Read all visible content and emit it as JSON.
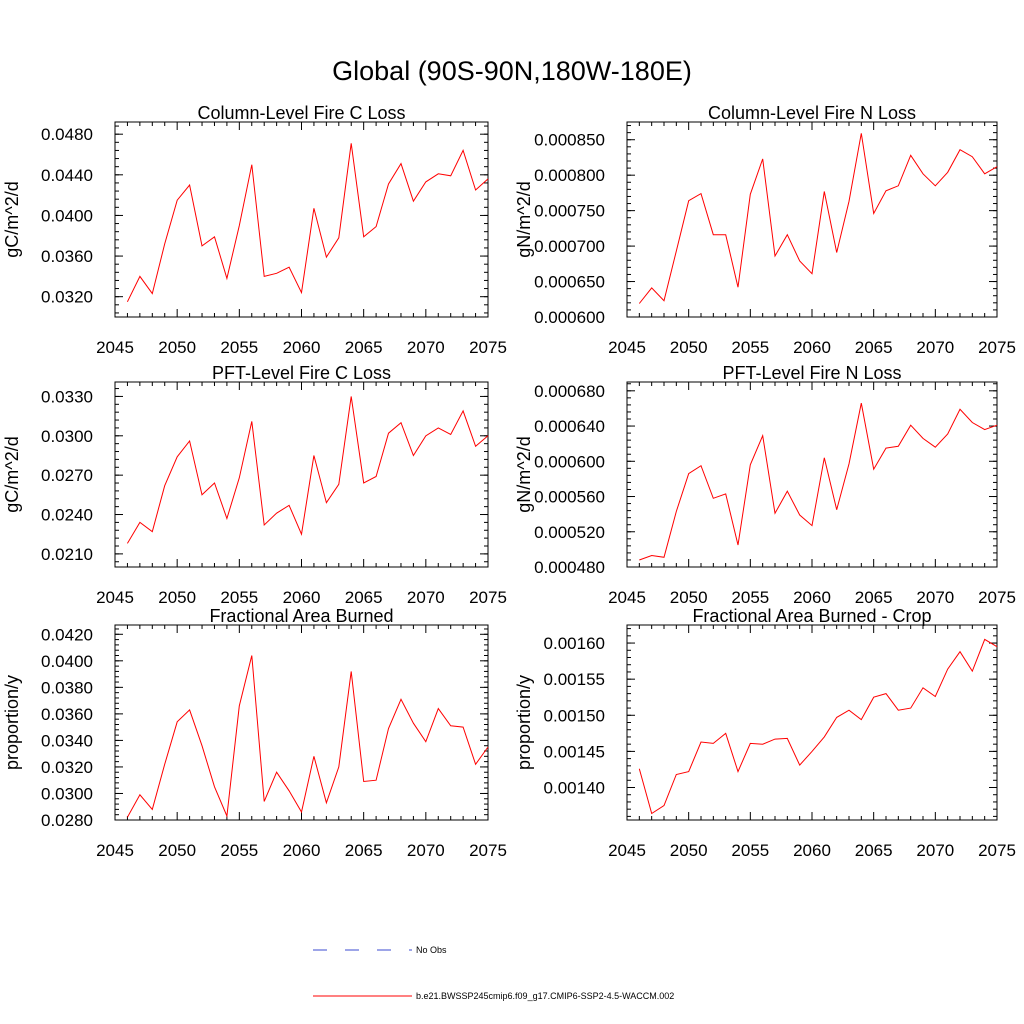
{
  "title": "Global (90S-90N,180W-180E)",
  "legend": [
    {
      "label": "No Obs",
      "color": "#3b4bd1",
      "style": "dashed"
    },
    {
      "label": "b.e21.BWSSP245cmip6.f09_g17.CMIP6-SSP2-4.5-WACCM.002",
      "color": "#ff0000",
      "style": "solid"
    }
  ],
  "chart_data": [
    {
      "type": "line",
      "title": "Column-Level Fire C Loss",
      "ylabel": "gC/m^2/d",
      "xlim": [
        2045,
        2075
      ],
      "ylim": [
        0.03,
        0.0492
      ],
      "xticks": [
        2045,
        2050,
        2055,
        2060,
        2065,
        2070,
        2075
      ],
      "yticks": [
        "0.0320",
        "0.0360",
        "0.0400",
        "0.0440",
        "0.0480"
      ],
      "ytick_values": [
        0.032,
        0.036,
        0.04,
        0.044,
        0.048
      ],
      "ymin_step": 0.0008,
      "series": [
        {
          "color": "#ff0000",
          "x": [
            2046,
            2047,
            2048,
            2049,
            2050,
            2051,
            2052,
            2053,
            2054,
            2055,
            2056,
            2057,
            2058,
            2059,
            2060,
            2061,
            2062,
            2063,
            2064,
            2065,
            2066,
            2067,
            2068,
            2069,
            2070,
            2071,
            2072,
            2073,
            2074,
            2075
          ],
          "values": [
            0.0315,
            0.034,
            0.0323,
            0.0372,
            0.0415,
            0.043,
            0.037,
            0.0379,
            0.0338,
            0.039,
            0.045,
            0.034,
            0.0343,
            0.0349,
            0.0324,
            0.0407,
            0.0359,
            0.0378,
            0.0471,
            0.0379,
            0.0389,
            0.0431,
            0.0451,
            0.0414,
            0.0433,
            0.0441,
            0.0439,
            0.0464,
            0.0425,
            0.0436
          ]
        }
      ]
    },
    {
      "type": "line",
      "title": "Column-Level Fire N Loss",
      "ylabel": "gN/m^2/d",
      "xlim": [
        2045,
        2075
      ],
      "ylim": [
        0.0006,
        0.000875
      ],
      "xticks": [
        2045,
        2050,
        2055,
        2060,
        2065,
        2070,
        2075
      ],
      "yticks": [
        "0.000600",
        "0.000650",
        "0.000700",
        "0.000750",
        "0.000800",
        "0.000850"
      ],
      "ytick_values": [
        0.0006,
        0.00065,
        0.0007,
        0.00075,
        0.0008,
        0.00085
      ],
      "ymin_step": 1e-05,
      "series": [
        {
          "color": "#ff0000",
          "x": [
            2046,
            2047,
            2048,
            2049,
            2050,
            2051,
            2052,
            2053,
            2054,
            2055,
            2056,
            2057,
            2058,
            2059,
            2060,
            2061,
            2062,
            2063,
            2064,
            2065,
            2066,
            2067,
            2068,
            2069,
            2070,
            2071,
            2072,
            2073,
            2074,
            2075
          ],
          "values": [
            0.000619,
            0.000641,
            0.000623,
            0.000693,
            0.000764,
            0.000774,
            0.000716,
            0.000716,
            0.000642,
            0.000773,
            0.000823,
            0.000686,
            0.000716,
            0.000679,
            0.000661,
            0.000777,
            0.000691,
            0.000763,
            0.000859,
            0.000746,
            0.000778,
            0.000785,
            0.000828,
            0.000802,
            0.000785,
            0.000804,
            0.000836,
            0.000826,
            0.000802,
            0.000812
          ]
        }
      ]
    },
    {
      "type": "line",
      "title": "PFT-Level Fire C Loss",
      "ylabel": "gC/m^2/d",
      "xlim": [
        2045,
        2075
      ],
      "ylim": [
        0.02,
        0.0341
      ],
      "xticks": [
        2045,
        2050,
        2055,
        2060,
        2065,
        2070,
        2075
      ],
      "yticks": [
        "0.0210",
        "0.0240",
        "0.0270",
        "0.0300",
        "0.0330"
      ],
      "ytick_values": [
        0.021,
        0.024,
        0.027,
        0.03,
        0.033
      ],
      "ymin_step": 0.0006,
      "series": [
        {
          "color": "#ff0000",
          "x": [
            2046,
            2047,
            2048,
            2049,
            2050,
            2051,
            2052,
            2053,
            2054,
            2055,
            2056,
            2057,
            2058,
            2059,
            2060,
            2061,
            2062,
            2063,
            2064,
            2065,
            2066,
            2067,
            2068,
            2069,
            2070,
            2071,
            2072,
            2073,
            2074,
            2075
          ],
          "values": [
            0.0218,
            0.0234,
            0.0227,
            0.0262,
            0.0284,
            0.0296,
            0.0255,
            0.0264,
            0.0237,
            0.0268,
            0.0311,
            0.0232,
            0.0241,
            0.0247,
            0.0225,
            0.0285,
            0.0249,
            0.0263,
            0.033,
            0.0264,
            0.0269,
            0.0302,
            0.031,
            0.0285,
            0.03,
            0.0306,
            0.0301,
            0.0319,
            0.0292,
            0.03
          ]
        }
      ]
    },
    {
      "type": "line",
      "title": "PFT-Level Fire N Loss",
      "ylabel": "gN/m^2/d",
      "xlim": [
        2045,
        2075
      ],
      "ylim": [
        0.00048,
        0.00069
      ],
      "xticks": [
        2045,
        2050,
        2055,
        2060,
        2065,
        2070,
        2075
      ],
      "yticks": [
        "0.000480",
        "0.000520",
        "0.000560",
        "0.000600",
        "0.000640",
        "0.000680"
      ],
      "ytick_values": [
        0.00048,
        0.00052,
        0.00056,
        0.0006,
        0.00064,
        0.00068
      ],
      "ymin_step": 8e-06,
      "series": [
        {
          "color": "#ff0000",
          "x": [
            2046,
            2047,
            2048,
            2049,
            2050,
            2051,
            2052,
            2053,
            2054,
            2055,
            2056,
            2057,
            2058,
            2059,
            2060,
            2061,
            2062,
            2063,
            2064,
            2065,
            2066,
            2067,
            2068,
            2069,
            2070,
            2071,
            2072,
            2073,
            2074,
            2075
          ],
          "values": [
            0.000488,
            0.000493,
            0.000491,
            0.000543,
            0.000586,
            0.000595,
            0.000558,
            0.000563,
            0.000505,
            0.000596,
            0.000629,
            0.000541,
            0.000566,
            0.000539,
            0.000527,
            0.000604,
            0.000545,
            0.000597,
            0.000666,
            0.000591,
            0.000615,
            0.000617,
            0.000641,
            0.000626,
            0.000616,
            0.000631,
            0.000659,
            0.000644,
            0.000636,
            0.000641
          ]
        }
      ]
    },
    {
      "type": "line",
      "title": "Fractional Area Burned",
      "ylabel": "proportion/y",
      "xlim": [
        2045,
        2075
      ],
      "ylim": [
        0.028,
        0.0427
      ],
      "xticks": [
        2045,
        2050,
        2055,
        2060,
        2065,
        2070,
        2075
      ],
      "yticks": [
        "0.0280",
        "0.0300",
        "0.0320",
        "0.0340",
        "0.0360",
        "0.0380",
        "0.0400",
        "0.0420"
      ],
      "ytick_values": [
        0.028,
        0.03,
        0.032,
        0.034,
        0.036,
        0.038,
        0.04,
        0.042
      ],
      "ymin_step": 0.0004,
      "series": [
        {
          "color": "#ff0000",
          "x": [
            2046,
            2047,
            2048,
            2049,
            2050,
            2051,
            2052,
            2053,
            2054,
            2055,
            2056,
            2057,
            2058,
            2059,
            2060,
            2061,
            2062,
            2063,
            2064,
            2065,
            2066,
            2067,
            2068,
            2069,
            2070,
            2071,
            2072,
            2073,
            2074,
            2075
          ],
          "values": [
            0.0282,
            0.0299,
            0.0288,
            0.0322,
            0.0354,
            0.0363,
            0.0336,
            0.0305,
            0.0283,
            0.0366,
            0.0404,
            0.0294,
            0.0316,
            0.0302,
            0.0286,
            0.0328,
            0.0293,
            0.032,
            0.0392,
            0.0309,
            0.031,
            0.0349,
            0.0371,
            0.0353,
            0.0339,
            0.0364,
            0.0351,
            0.035,
            0.0322,
            0.0335
          ]
        }
      ]
    },
    {
      "type": "line",
      "title": "Fractional Area Burned - Crop",
      "ylabel": "proportion/y",
      "xlim": [
        2045,
        2075
      ],
      "ylim": [
        0.001355,
        0.001625
      ],
      "xticks": [
        2045,
        2050,
        2055,
        2060,
        2065,
        2070,
        2075
      ],
      "yticks": [
        "0.00140",
        "0.00145",
        "0.00150",
        "0.00155",
        "0.00160"
      ],
      "ytick_values": [
        0.0014,
        0.00145,
        0.0015,
        0.00155,
        0.0016
      ],
      "ymin_step": 1e-05,
      "series": [
        {
          "color": "#ff0000",
          "x": [
            2046,
            2047,
            2048,
            2049,
            2050,
            2051,
            2052,
            2053,
            2054,
            2055,
            2056,
            2057,
            2058,
            2059,
            2060,
            2061,
            2062,
            2063,
            2064,
            2065,
            2066,
            2067,
            2068,
            2069,
            2070,
            2071,
            2072,
            2073,
            2074,
            2075
          ],
          "values": [
            0.001426,
            0.001364,
            0.001375,
            0.001418,
            0.001422,
            0.001463,
            0.001461,
            0.001475,
            0.001422,
            0.001461,
            0.00146,
            0.001467,
            0.001468,
            0.001431,
            0.00145,
            0.00147,
            0.001497,
            0.001507,
            0.001494,
            0.001525,
            0.00153,
            0.001507,
            0.00151,
            0.001538,
            0.001526,
            0.001564,
            0.001588,
            0.001561,
            0.001605,
            0.001595
          ]
        }
      ]
    }
  ]
}
